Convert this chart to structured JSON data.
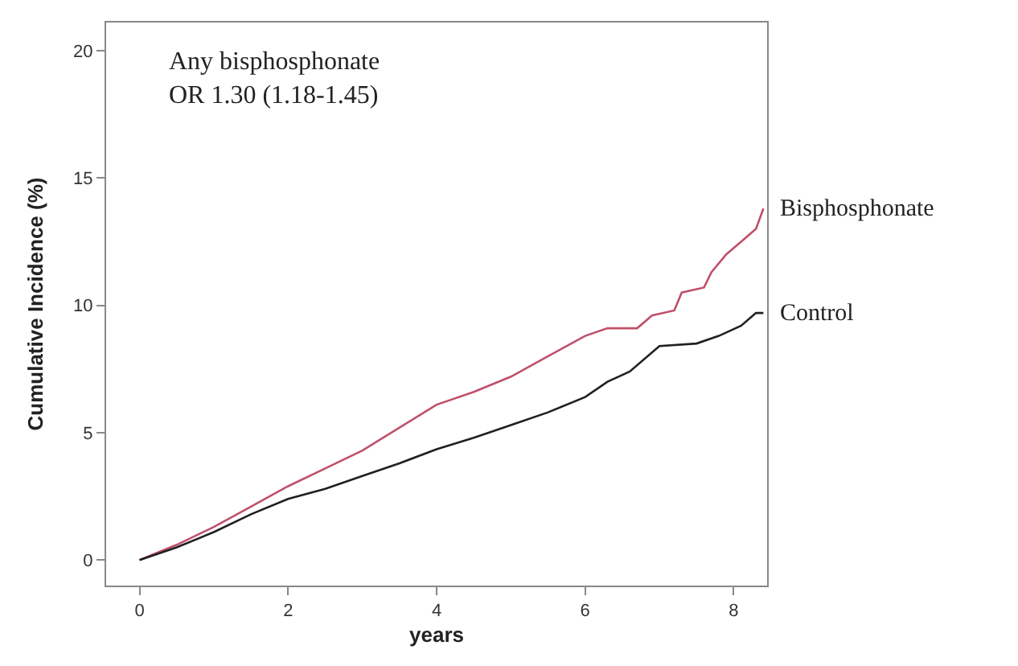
{
  "chart_data": {
    "type": "line",
    "xlabel": "years",
    "ylabel": "Cumulative Incidence (%)",
    "annotations": [
      "Any bisphosphonate\nOR 1.30 (1.18-1.45)"
    ],
    "xlim": [
      -0.45,
      8.45
    ],
    "xticks": [
      0,
      2,
      4,
      6,
      8
    ],
    "ylim": [
      -1,
      21.1
    ],
    "yticks": [
      0,
      5,
      10,
      15,
      20
    ],
    "series": [
      {
        "name": "Bisphosphonate",
        "color": "#c0506a",
        "x": [
          0,
          0.5,
          1,
          1.5,
          2,
          2.5,
          3,
          3.5,
          4,
          4.5,
          5,
          5.5,
          6,
          6.3,
          6.7,
          6.9,
          7.2,
          7.3,
          7.6,
          7.7,
          7.9,
          8.1,
          8.3,
          8.4
        ],
        "values": [
          0,
          0.6,
          1.3,
          2.1,
          2.9,
          3.6,
          4.3,
          5.2,
          6.1,
          6.6,
          7.2,
          8.0,
          8.8,
          9.1,
          9.1,
          9.6,
          9.8,
          10.5,
          10.7,
          11.3,
          12.0,
          12.5,
          13.0,
          13.8
        ]
      },
      {
        "name": "Control",
        "color": "#202020",
        "x": [
          0,
          0.5,
          1,
          1.5,
          2,
          2.5,
          3,
          3.5,
          4,
          4.5,
          5,
          5.5,
          6,
          6.3,
          6.6,
          7,
          7.5,
          7.8,
          8.1,
          8.3,
          8.4
        ],
        "values": [
          0,
          0.5,
          1.1,
          1.8,
          2.4,
          2.8,
          3.3,
          3.8,
          4.35,
          4.8,
          5.3,
          5.8,
          6.4,
          7.0,
          7.4,
          8.4,
          8.5,
          8.8,
          9.2,
          9.7,
          9.7
        ]
      }
    ]
  }
}
